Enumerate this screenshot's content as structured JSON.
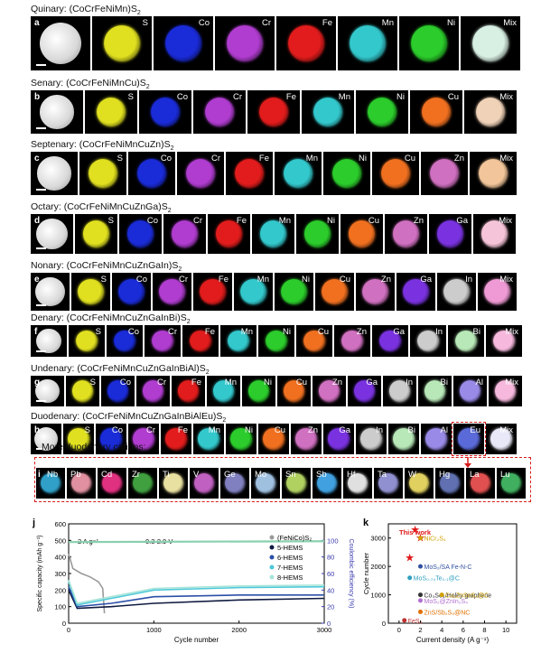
{
  "rows": [
    {
      "title": "Quinary: (CoCrFeNiMn)S",
      "sub": "2",
      "letter": "a",
      "labels": [
        "S",
        "Co",
        "Cr",
        "Fe",
        "Mn",
        "Ni",
        "Mix"
      ],
      "colors": [
        "#e0e020",
        "#1a2bd8",
        "#b03cd0",
        "#e21c1c",
        "#33c8cc",
        "#2bcc2b",
        "#d8efe3"
      ]
    },
    {
      "title": "Senary: (CoCrFeNiMnCu)S",
      "sub": "2",
      "letter": "b",
      "labels": [
        "S",
        "Co",
        "Cr",
        "Fe",
        "Mn",
        "Ni",
        "Cu",
        "Mix"
      ],
      "colors": [
        "#e0e020",
        "#1a2bd8",
        "#b03cd0",
        "#e21c1c",
        "#33c8cc",
        "#2bcc2b",
        "#f07020",
        "#f0d2b8"
      ]
    },
    {
      "title": "Septenary: (CoCrFeNiMnCuZn)S",
      "sub": "2",
      "letter": "c",
      "labels": [
        "S",
        "Co",
        "Cr",
        "Fe",
        "Mn",
        "Ni",
        "Cu",
        "Zn",
        "Mix"
      ],
      "colors": [
        "#e0e020",
        "#1a2bd8",
        "#b03cd0",
        "#e21c1c",
        "#33c8cc",
        "#2bcc2b",
        "#f07020",
        "#d070c0",
        "#f2c69a"
      ]
    },
    {
      "title": "Octary: (CoCrFeNiMnCuZnGa)S",
      "sub": "2",
      "letter": "d",
      "labels": [
        "S",
        "Co",
        "Cr",
        "Fe",
        "Mn",
        "Ni",
        "Cu",
        "Zn",
        "Ga",
        "Mix"
      ],
      "colors": [
        "#e0e020",
        "#1a2bd8",
        "#b03cd0",
        "#e21c1c",
        "#33c8cc",
        "#2bcc2b",
        "#f07020",
        "#d070c0",
        "#7a32e0",
        "#f6c4d8"
      ]
    },
    {
      "title": "Nonary: (CoCrFeNiMnCuZnGaIn)S",
      "sub": "2",
      "letter": "e",
      "labels": [
        "S",
        "Co",
        "Cr",
        "Fe",
        "Mn",
        "Ni",
        "Cu",
        "Zn",
        "Ga",
        "In",
        "Mix"
      ],
      "colors": [
        "#e0e020",
        "#1a2bd8",
        "#b03cd0",
        "#e21c1c",
        "#33c8cc",
        "#2bcc2b",
        "#f07020",
        "#d070c0",
        "#7a32e0",
        "#cccccc",
        "#ef9ad4"
      ]
    },
    {
      "title": "Denary: (CoCrFeNiMnCuZnGaInBi)S",
      "sub": "2",
      "letter": "f",
      "labels": [
        "S",
        "Co",
        "Cr",
        "Fe",
        "Mn",
        "Ni",
        "Cu",
        "Zn",
        "Ga",
        "In",
        "Bi",
        "Mix"
      ],
      "colors": [
        "#e0e020",
        "#1a2bd8",
        "#b03cd0",
        "#e21c1c",
        "#33c8cc",
        "#2bcc2b",
        "#f07020",
        "#d070c0",
        "#7a32e0",
        "#cccccc",
        "#b8e8b8",
        "#f6b8dc"
      ]
    },
    {
      "title": "Undenary: (CoCrFeNiMnCuZnGaInBiAl)S",
      "sub": "2",
      "letter": "g",
      "labels": [
        "S",
        "Co",
        "Cr",
        "Fe",
        "Mn",
        "Ni",
        "Cu",
        "Zn",
        "Ga",
        "In",
        "Bi",
        "Al",
        "Mix"
      ],
      "colors": [
        "#e0e020",
        "#1a2bd8",
        "#b03cd0",
        "#e21c1c",
        "#33c8cc",
        "#2bcc2b",
        "#f07020",
        "#d070c0",
        "#7a32e0",
        "#cccccc",
        "#b8e8b8",
        "#9a8ae8",
        "#f6b8dc"
      ]
    },
    {
      "title": "Duodenary: (CoCrFeNiMnCuZnGaInBiAlEu)S",
      "sub": "2",
      "letter": "h",
      "labels": [
        "S",
        "Co",
        "Cr",
        "Fe",
        "Mn",
        "Ni",
        "Cu",
        "Zn",
        "Ga",
        "In",
        "Bi",
        "Al",
        "Eu",
        "Mix"
      ],
      "colors": [
        "#e0e020",
        "#1a2bd8",
        "#b03cd0",
        "#e21c1c",
        "#33c8cc",
        "#2bcc2b",
        "#f07020",
        "#d070c0",
        "#7a32e0",
        "#cccccc",
        "#b8e8b8",
        "#9a8ae8",
        "#5a6ad8",
        "#e8e8f8"
      ]
    }
  ],
  "more": {
    "title": "More duodenary cations:",
    "letter": "i",
    "labels": [
      "Nb",
      "Pb",
      "Cd",
      "Zr",
      "Ti",
      "V",
      "Ge",
      "Mo",
      "Sn",
      "Sb",
      "Hf",
      "Ta",
      "W",
      "Hg",
      "La",
      "Lu"
    ],
    "colors": [
      "#30a0c8",
      "#e090a0",
      "#e03080",
      "#40a040",
      "#e8e0a0",
      "#c060c0",
      "#8080c0",
      "#a0c0e0",
      "#b0d060",
      "#40a0e0",
      "#e0e0e0",
      "#9090d0",
      "#e0d060",
      "#6070b0",
      "#e05050",
      "#40b060"
    ]
  },
  "chart_j": {
    "letter": "j",
    "xlabel": "Cycle number",
    "ylabel_left": "Specific capacity (mAh g⁻¹)",
    "ylabel_right": "Coulombic efficiency (%)",
    "xticks": [
      "0",
      "1000",
      "2000",
      "3000"
    ],
    "yticks_left": [
      "0",
      "100",
      "200",
      "300",
      "400",
      "500",
      "600"
    ],
    "yticks_right": [
      "0",
      "20",
      "40",
      "60",
      "80",
      "100"
    ],
    "annot_rate": "2 A g⁻¹",
    "annot_voltage": "0.3-2.9 V",
    "legend": [
      "(FeNiCo)S₂",
      "5-HEMS",
      "6-HEMS",
      "7-HEMS",
      "8-HEMS"
    ],
    "colors": [
      "#9a9a9a",
      "#101a40",
      "#2b4fa8",
      "#4ec8d8",
      "#a8e4d8"
    ]
  },
  "chart_k": {
    "letter": "k",
    "xlabel": "Current density (A g⁻¹)",
    "ylabel": "Cycle number",
    "xticks": [
      "0",
      "2",
      "4",
      "6",
      "8",
      "10"
    ],
    "yticks": [
      "0",
      "1000",
      "2000",
      "3000"
    ],
    "this_work": "This work",
    "labels": [
      {
        "text": "NiCr₂S₄",
        "color": "#d0a000"
      },
      {
        "text": "MoS₂/SA Fe-N-C",
        "color": "#3050a0"
      },
      {
        "text": "MoS₀.₇₄Te₀.₁@C",
        "color": "#30a0c0"
      },
      {
        "text": "Co₃Se₄/Holey graphene",
        "color": "#333333"
      },
      {
        "text": "Cu₂ZnSnS₄@C",
        "color": "#d0a000"
      },
      {
        "text": "MoS₂@ZnIn₂S₄",
        "color": "#b070d0"
      },
      {
        "text": "ZnS/Sb₂S₃@NC",
        "color": "#e07000"
      },
      {
        "text": "FeS₂",
        "color": "#c03030"
      }
    ]
  },
  "chart_data": [
    {
      "type": "line",
      "title": "",
      "xlabel": "Cycle number",
      "ylabel": "Specific capacity (mAh g⁻¹)",
      "xlim": [
        0,
        3000
      ],
      "ylim": [
        0,
        600
      ],
      "series": [
        {
          "name": "(FeNiCo)S₂",
          "x": [
            0,
            50,
            150,
            250,
            350,
            400,
            420
          ],
          "values": [
            420,
            330,
            300,
            280,
            250,
            210,
            60
          ]
        },
        {
          "name": "5-HEMS",
          "x": [
            0,
            100,
            500,
            1000,
            2000,
            3000
          ],
          "values": [
            200,
            90,
            100,
            120,
            140,
            150
          ]
        },
        {
          "name": "6-HEMS",
          "x": [
            0,
            100,
            500,
            1000,
            2000,
            3000
          ],
          "values": [
            220,
            100,
            120,
            160,
            170,
            170
          ]
        },
        {
          "name": "7-HEMS",
          "x": [
            0,
            100,
            500,
            1000,
            2000,
            3000
          ],
          "values": [
            250,
            110,
            150,
            200,
            215,
            220
          ]
        },
        {
          "name": "8-HEMS",
          "x": [
            0,
            100,
            500,
            1000,
            2000,
            3000
          ],
          "values": [
            260,
            120,
            160,
            210,
            225,
            230
          ]
        },
        {
          "name": "Coulombic efficiency",
          "x": [
            0,
            3000
          ],
          "values": [
            98,
            99
          ]
        }
      ]
    },
    {
      "type": "scatter",
      "title": "",
      "xlabel": "Current density (A g⁻¹)",
      "ylabel": "Cycle number",
      "xlim": [
        0,
        10
      ],
      "ylim": [
        0,
        3500
      ],
      "series": [
        {
          "name": "This work",
          "x": [
            2,
            1,
            1.5
          ],
          "values": [
            3000,
            2300,
            3300
          ]
        },
        {
          "name": "NiCr₂S₄",
          "x": [
            2
          ],
          "values": [
            3000
          ]
        },
        {
          "name": "MoS₂/SA Fe-N-C",
          "x": [
            2
          ],
          "values": [
            2000
          ]
        },
        {
          "name": "MoS₀.₇₄Te₀.₁@C",
          "x": [
            1
          ],
          "values": [
            1600
          ]
        },
        {
          "name": "Co₃Se₄/Holey graphene",
          "x": [
            2
          ],
          "values": [
            1000
          ]
        },
        {
          "name": "Cu₂ZnSnS₄@C",
          "x": [
            4
          ],
          "values": [
            1000
          ]
        },
        {
          "name": "MoS₂@ZnIn₂S₄",
          "x": [
            2
          ],
          "values": [
            800
          ]
        },
        {
          "name": "ZnS/Sb₂S₃@NC",
          "x": [
            2
          ],
          "values": [
            400
          ]
        },
        {
          "name": "FeS₂",
          "x": [
            0.5
          ],
          "values": [
            100
          ]
        }
      ]
    }
  ]
}
